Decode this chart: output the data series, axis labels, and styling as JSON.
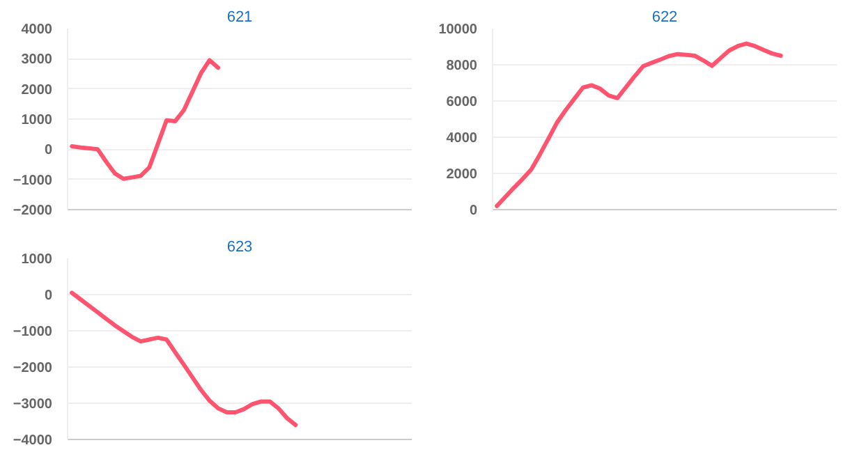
{
  "chart_data": [
    {
      "type": "line",
      "title": "621",
      "categories": [
        null,
        null,
        null,
        null,
        null,
        null,
        null,
        null,
        null,
        null,
        null,
        null,
        null,
        null,
        null,
        null,
        null,
        null,
        null,
        null,
        null,
        null,
        null,
        null,
        null,
        null,
        null,
        null,
        null,
        null,
        null,
        null,
        null,
        null,
        null,
        null,
        null,
        null,
        null,
        null
      ],
      "series": [
        {
          "color": "#ff5470",
          "values": [
            100,
            60,
            30,
            0,
            -420,
            -800,
            -980,
            -930,
            -880,
            -600,
            180,
            960,
            930,
            1290,
            1900,
            2520,
            2950,
            2700,
            null,
            null,
            null,
            null,
            null,
            null,
            null,
            null,
            null,
            null,
            null,
            null,
            null,
            null,
            null,
            null,
            null,
            null,
            null,
            null,
            null,
            null
          ]
        }
      ],
      "ylim": [
        -2000,
        4000
      ],
      "yticks": [
        -2000,
        -1000,
        0,
        1000,
        2000,
        3000,
        4000
      ],
      "grid": "y",
      "tick_labels": "y"
    },
    {
      "type": "line",
      "title": "622",
      "categories": [
        null,
        null,
        null,
        null,
        null,
        null,
        null,
        null,
        null,
        null,
        null,
        null,
        null,
        null,
        null,
        null,
        null,
        null,
        null,
        null,
        null,
        null,
        null,
        null,
        null,
        null,
        null,
        null,
        null,
        null,
        null,
        null,
        null,
        null,
        null,
        null,
        null,
        null,
        null,
        null
      ],
      "series": [
        {
          "color": "#ff5470",
          "values": [
            200,
            710,
            1220,
            1700,
            2220,
            3050,
            3930,
            4820,
            5500,
            6120,
            6740,
            6870,
            6680,
            6300,
            6160,
            6760,
            7360,
            7920,
            8110,
            8290,
            8480,
            8590,
            8550,
            8500,
            8240,
            7940,
            8370,
            8790,
            9030,
            9170,
            9030,
            8820,
            8620,
            8500,
            null,
            null,
            null,
            null,
            null,
            null
          ]
        }
      ],
      "ylim": [
        0,
        10000
      ],
      "yticks": [
        0,
        2000,
        4000,
        6000,
        8000,
        10000
      ],
      "grid": "y",
      "tick_labels": "y"
    },
    {
      "type": "line",
      "title": "623",
      "categories": [
        null,
        null,
        null,
        null,
        null,
        null,
        null,
        null,
        null,
        null,
        null,
        null,
        null,
        null,
        null,
        null,
        null,
        null,
        null,
        null,
        null,
        null,
        null,
        null,
        null,
        null,
        null,
        null,
        null,
        null,
        null,
        null,
        null,
        null,
        null,
        null,
        null,
        null,
        null,
        null
      ],
      "series": [
        {
          "color": "#ff5470",
          "values": [
            50,
            -130,
            -310,
            -490,
            -670,
            -850,
            -1010,
            -1170,
            -1290,
            -1240,
            -1190,
            -1240,
            -1590,
            -1930,
            -2280,
            -2630,
            -2930,
            -3140,
            -3250,
            -3250,
            -3160,
            -3020,
            -2950,
            -2950,
            -3140,
            -3410,
            -3600,
            null,
            null,
            null,
            null,
            null,
            null,
            null,
            null,
            null,
            null,
            null,
            null,
            null
          ]
        }
      ],
      "ylim": [
        -4000,
        1000
      ],
      "yticks": [
        -4000,
        -3000,
        -2000,
        -1000,
        0,
        1000
      ],
      "grid": "y",
      "tick_labels": "y"
    }
  ]
}
